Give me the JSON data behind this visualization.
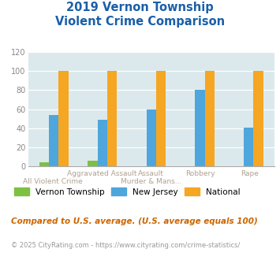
{
  "title_line1": "2019 Vernon Township",
  "title_line2": "Violent Crime Comparison",
  "categories": [
    "All Violent Crime",
    "Aggravated Assault",
    "Murder & Mans...",
    "Robbery",
    "Rape"
  ],
  "top_labels": [
    "",
    "Aggravated Assault",
    "Assault",
    "Robbery",
    "Rape"
  ],
  "bot_labels": [
    "All Violent Crime",
    "",
    "Murder & Mans...",
    "",
    ""
  ],
  "series": {
    "Vernon Township": [
      4,
      6,
      0,
      0,
      0
    ],
    "New Jersey": [
      54,
      49,
      60,
      80,
      41
    ],
    "National": [
      100,
      100,
      100,
      100,
      100
    ]
  },
  "colors": {
    "Vernon Township": "#7dc142",
    "New Jersey": "#4ea6dc",
    "National": "#f5a623"
  },
  "ylim": [
    0,
    120
  ],
  "yticks": [
    0,
    20,
    40,
    60,
    80,
    100,
    120
  ],
  "plot_bg": "#dce9ec",
  "title_color": "#1a5fa8",
  "label_color": "#b0a090",
  "footnote1": "Compared to U.S. average. (U.S. average equals 100)",
  "footnote2": "© 2025 CityRating.com - https://www.cityrating.com/crime-statistics/",
  "footnote1_color": "#cc6600",
  "footnote2_color": "#999999",
  "series_names": [
    "Vernon Township",
    "New Jersey",
    "National"
  ]
}
